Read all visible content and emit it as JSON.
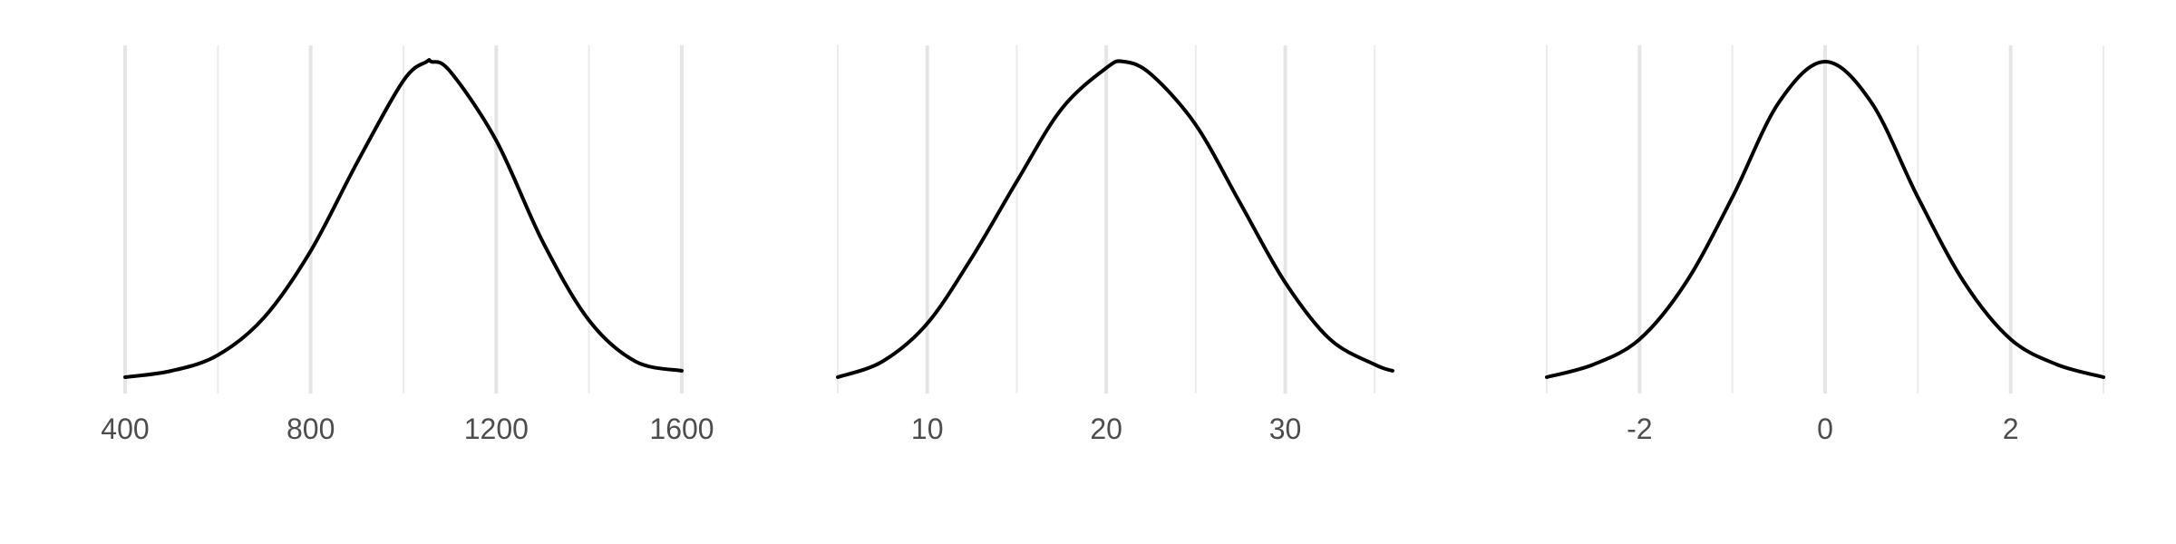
{
  "chart_data": [
    {
      "type": "line",
      "title": "",
      "xlabel": "",
      "ylabel": "",
      "grid": true,
      "xlim": [
        400,
        1600
      ],
      "ylim": [
        0,
        1
      ],
      "x_ticks": [
        400,
        800,
        1200,
        1600
      ],
      "x_tick_labels": [
        "400",
        "800",
        "1200",
        "1600"
      ],
      "series": [
        {
          "x": [
            400,
            500,
            600,
            700,
            800,
            900,
            1000,
            1050,
            1060,
            1100,
            1200,
            1300,
            1400,
            1500,
            1600
          ],
          "y": [
            0.0,
            0.02,
            0.07,
            0.19,
            0.4,
            0.68,
            0.94,
            1.0,
            1.0,
            0.97,
            0.75,
            0.43,
            0.18,
            0.05,
            0.02
          ]
        }
      ]
    },
    {
      "type": "line",
      "title": "",
      "xlabel": "",
      "ylabel": "",
      "grid": true,
      "xlim": [
        5,
        36
      ],
      "ylim": [
        0,
        1
      ],
      "x_ticks": [
        10,
        20,
        30
      ],
      "x_tick_labels": [
        "10",
        "20",
        "30"
      ],
      "series": [
        {
          "x": [
            5,
            7.5,
            10,
            12.5,
            15,
            17.5,
            20,
            21,
            22.5,
            25,
            27.5,
            30,
            32.5,
            35,
            36
          ],
          "y": [
            0.0,
            0.05,
            0.17,
            0.38,
            0.62,
            0.85,
            0.98,
            1.0,
            0.96,
            0.8,
            0.55,
            0.3,
            0.12,
            0.04,
            0.02
          ]
        }
      ]
    },
    {
      "type": "line",
      "title": "",
      "xlabel": "",
      "ylabel": "",
      "grid": true,
      "xlim": [
        -3,
        3
      ],
      "ylim": [
        0,
        1
      ],
      "x_ticks": [
        -2,
        0,
        2
      ],
      "x_tick_labels": [
        "-2",
        "0",
        "2"
      ],
      "series": [
        {
          "x": [
            -3,
            -2.5,
            -2,
            -1.5,
            -1,
            -0.5,
            0,
            0.5,
            1,
            1.5,
            2,
            2.5,
            3
          ],
          "y": [
            0.0,
            0.04,
            0.12,
            0.3,
            0.57,
            0.87,
            1.0,
            0.87,
            0.57,
            0.3,
            0.12,
            0.04,
            0.0
          ]
        }
      ]
    }
  ]
}
